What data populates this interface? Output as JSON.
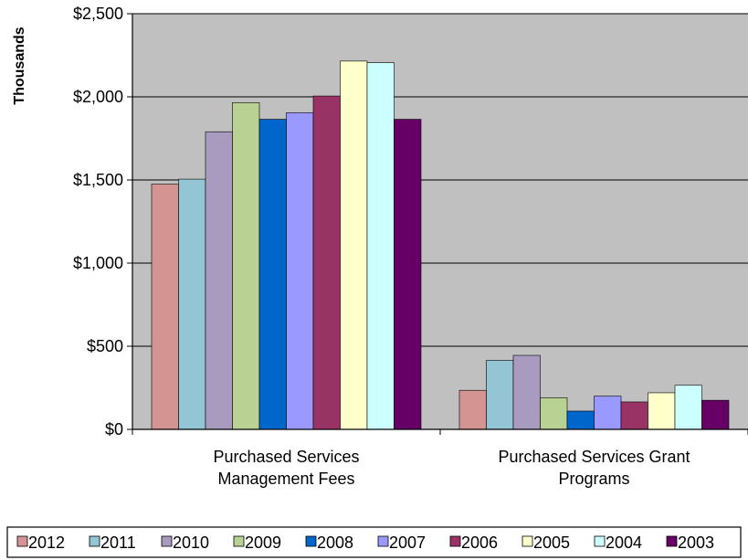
{
  "chart_data": {
    "type": "bar",
    "ylabel": "Thousands",
    "ylim": [
      0,
      2500
    ],
    "y_ticks": [
      0,
      500,
      1000,
      1500,
      2000,
      2500
    ],
    "y_tick_labels": [
      "$0",
      "$500",
      "$1,000",
      "$1,500",
      "$2,000",
      "$2,500"
    ],
    "categories": [
      [
        "Purchased Services",
        "Management Fees"
      ],
      [
        "Purchased Services Grant",
        "Programs"
      ]
    ],
    "grid": true,
    "plot_background": "#c0c0c0",
    "legend_position": "bottom",
    "series": [
      {
        "name": "2012",
        "color": "#d49592",
        "values": [
          1475,
          235
        ]
      },
      {
        "name": "2011",
        "color": "#93c5d5",
        "values": [
          1505,
          415
        ]
      },
      {
        "name": "2010",
        "color": "#a99bc0",
        "values": [
          1790,
          445
        ]
      },
      {
        "name": "2009",
        "color": "#b9d193",
        "values": [
          1965,
          190
        ]
      },
      {
        "name": "2008",
        "color": "#0066cc",
        "values": [
          1865,
          110
        ]
      },
      {
        "name": "2007",
        "color": "#9999ff",
        "values": [
          1905,
          200
        ]
      },
      {
        "name": "2006",
        "color": "#993366",
        "values": [
          2005,
          165
        ]
      },
      {
        "name": "2005",
        "color": "#ffffcc",
        "values": [
          2215,
          220
        ]
      },
      {
        "name": "2004",
        "color": "#ccffff",
        "values": [
          2205,
          265
        ]
      },
      {
        "name": "2003",
        "color": "#660066",
        "values": [
          1865,
          175
        ]
      }
    ]
  }
}
